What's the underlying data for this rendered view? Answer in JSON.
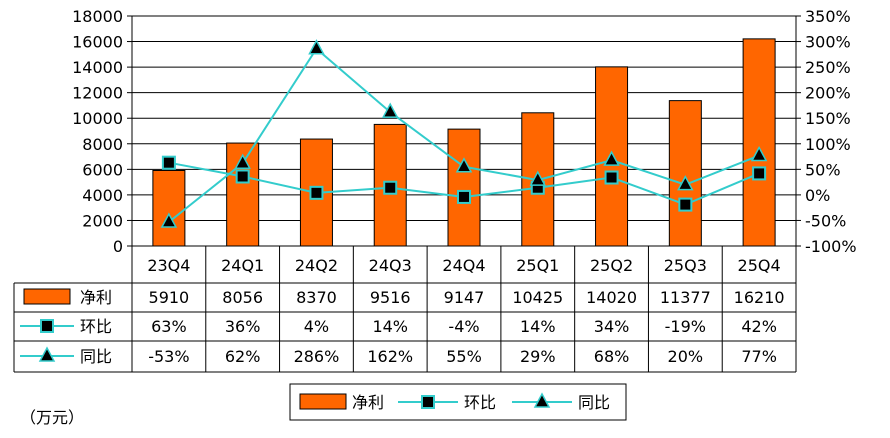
{
  "chart_data": {
    "type": "bar",
    "categories": [
      "23Q4",
      "24Q1",
      "24Q2",
      "24Q3",
      "24Q4",
      "25Q1",
      "25Q2",
      "25Q3",
      "25Q4"
    ],
    "series": [
      {
        "name": "净利",
        "type": "bar",
        "axis": "left",
        "color": "#ff6600",
        "values": [
          5910,
          8056,
          8370,
          9516,
          9147,
          10425,
          14020,
          11377,
          16210
        ],
        "labels": [
          "5910",
          "8056",
          "8370",
          "9516",
          "9147",
          "10425",
          "14020",
          "11377",
          "16210"
        ]
      },
      {
        "name": "环比",
        "type": "line",
        "axis": "right",
        "marker": "square",
        "color": "#33cccc",
        "values": [
          63,
          36,
          4,
          14,
          -4,
          14,
          34,
          -19,
          42
        ],
        "labels": [
          "63%",
          "36%",
          "4%",
          "14%",
          "-4%",
          "14%",
          "34%",
          "-19%",
          "42%"
        ]
      },
      {
        "name": "同比",
        "type": "line",
        "axis": "right",
        "marker": "triangle",
        "color": "#33cccc",
        "values": [
          -53,
          62,
          286,
          162,
          55,
          29,
          68,
          20,
          77
        ],
        "labels": [
          "-53%",
          "62%",
          "286%",
          "162%",
          "55%",
          "29%",
          "68%",
          "20%",
          "77%"
        ]
      }
    ],
    "ylim": [
      0,
      18000
    ],
    "yticks": [
      "0",
      "2000",
      "4000",
      "6000",
      "8000",
      "10000",
      "12000",
      "14000",
      "16000",
      "18000"
    ],
    "y2lim": [
      -100,
      350
    ],
    "y2ticks": [
      "-100%",
      "-50%",
      "0%",
      "50%",
      "100%",
      "150%",
      "200%",
      "250%",
      "300%",
      "350%"
    ],
    "legend": [
      "净利",
      "环比",
      "同比"
    ],
    "unit_note": "（万元）",
    "grid": true,
    "legend_position": "bottom"
  }
}
